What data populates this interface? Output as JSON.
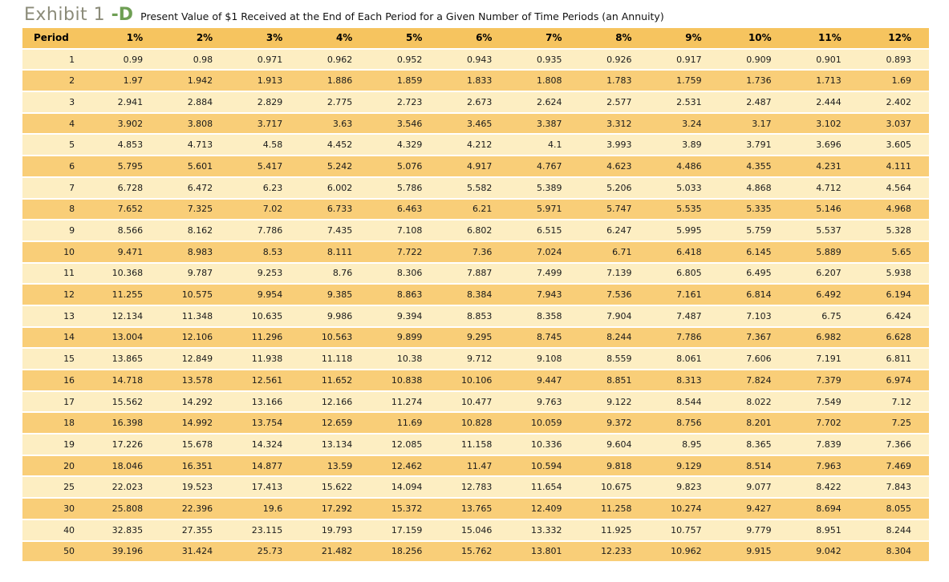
{
  "header": {
    "exhibit_label": "Exhibit 1 ",
    "exhibit_suffix": "-D",
    "subtitle": "Present Value of $1 Received at the End of Each Period for a Given Number of Time Periods (an Annuity)"
  },
  "colors": {
    "header_bg": "#f6c45f",
    "row_light": "#fdeec2",
    "row_dark": "#f9ce78",
    "exhibit_text": "#8b8b79",
    "exhibit_suffix_text": "#6e9f54"
  },
  "chart_data": {
    "type": "table",
    "title": "Present Value of $1 Received at the End of Each Period for a Given Number of Time Periods (an Annuity)",
    "columns": [
      "Period",
      "1%",
      "2%",
      "3%",
      "4%",
      "5%",
      "6%",
      "7%",
      "8%",
      "9%",
      "10%",
      "11%",
      "12%"
    ],
    "rows": [
      [
        "1",
        "0.99",
        "0.98",
        "0.971",
        "0.962",
        "0.952",
        "0.943",
        "0.935",
        "0.926",
        "0.917",
        "0.909",
        "0.901",
        "0.893"
      ],
      [
        "2",
        "1.97",
        "1.942",
        "1.913",
        "1.886",
        "1.859",
        "1.833",
        "1.808",
        "1.783",
        "1.759",
        "1.736",
        "1.713",
        "1.69"
      ],
      [
        "3",
        "2.941",
        "2.884",
        "2.829",
        "2.775",
        "2.723",
        "2.673",
        "2.624",
        "2.577",
        "2.531",
        "2.487",
        "2.444",
        "2.402"
      ],
      [
        "4",
        "3.902",
        "3.808",
        "3.717",
        "3.63",
        "3.546",
        "3.465",
        "3.387",
        "3.312",
        "3.24",
        "3.17",
        "3.102",
        "3.037"
      ],
      [
        "5",
        "4.853",
        "4.713",
        "4.58",
        "4.452",
        "4.329",
        "4.212",
        "4.1",
        "3.993",
        "3.89",
        "3.791",
        "3.696",
        "3.605"
      ],
      [
        "6",
        "5.795",
        "5.601",
        "5.417",
        "5.242",
        "5.076",
        "4.917",
        "4.767",
        "4.623",
        "4.486",
        "4.355",
        "4.231",
        "4.111"
      ],
      [
        "7",
        "6.728",
        "6.472",
        "6.23",
        "6.002",
        "5.786",
        "5.582",
        "5.389",
        "5.206",
        "5.033",
        "4.868",
        "4.712",
        "4.564"
      ],
      [
        "8",
        "7.652",
        "7.325",
        "7.02",
        "6.733",
        "6.463",
        "6.21",
        "5.971",
        "5.747",
        "5.535",
        "5.335",
        "5.146",
        "4.968"
      ],
      [
        "9",
        "8.566",
        "8.162",
        "7.786",
        "7.435",
        "7.108",
        "6.802",
        "6.515",
        "6.247",
        "5.995",
        "5.759",
        "5.537",
        "5.328"
      ],
      [
        "10",
        "9.471",
        "8.983",
        "8.53",
        "8.111",
        "7.722",
        "7.36",
        "7.024",
        "6.71",
        "6.418",
        "6.145",
        "5.889",
        "5.65"
      ],
      [
        "11",
        "10.368",
        "9.787",
        "9.253",
        "8.76",
        "8.306",
        "7.887",
        "7.499",
        "7.139",
        "6.805",
        "6.495",
        "6.207",
        "5.938"
      ],
      [
        "12",
        "11.255",
        "10.575",
        "9.954",
        "9.385",
        "8.863",
        "8.384",
        "7.943",
        "7.536",
        "7.161",
        "6.814",
        "6.492",
        "6.194"
      ],
      [
        "13",
        "12.134",
        "11.348",
        "10.635",
        "9.986",
        "9.394",
        "8.853",
        "8.358",
        "7.904",
        "7.487",
        "7.103",
        "6.75",
        "6.424"
      ],
      [
        "14",
        "13.004",
        "12.106",
        "11.296",
        "10.563",
        "9.899",
        "9.295",
        "8.745",
        "8.244",
        "7.786",
        "7.367",
        "6.982",
        "6.628"
      ],
      [
        "15",
        "13.865",
        "12.849",
        "11.938",
        "11.118",
        "10.38",
        "9.712",
        "9.108",
        "8.559",
        "8.061",
        "7.606",
        "7.191",
        "6.811"
      ],
      [
        "16",
        "14.718",
        "13.578",
        "12.561",
        "11.652",
        "10.838",
        "10.106",
        "9.447",
        "8.851",
        "8.313",
        "7.824",
        "7.379",
        "6.974"
      ],
      [
        "17",
        "15.562",
        "14.292",
        "13.166",
        "12.166",
        "11.274",
        "10.477",
        "9.763",
        "9.122",
        "8.544",
        "8.022",
        "7.549",
        "7.12"
      ],
      [
        "18",
        "16.398",
        "14.992",
        "13.754",
        "12.659",
        "11.69",
        "10.828",
        "10.059",
        "9.372",
        "8.756",
        "8.201",
        "7.702",
        "7.25"
      ],
      [
        "19",
        "17.226",
        "15.678",
        "14.324",
        "13.134",
        "12.085",
        "11.158",
        "10.336",
        "9.604",
        "8.95",
        "8.365",
        "7.839",
        "7.366"
      ],
      [
        "20",
        "18.046",
        "16.351",
        "14.877",
        "13.59",
        "12.462",
        "11.47",
        "10.594",
        "9.818",
        "9.129",
        "8.514",
        "7.963",
        "7.469"
      ],
      [
        "25",
        "22.023",
        "19.523",
        "17.413",
        "15.622",
        "14.094",
        "12.783",
        "11.654",
        "10.675",
        "9.823",
        "9.077",
        "8.422",
        "7.843"
      ],
      [
        "30",
        "25.808",
        "22.396",
        "19.6",
        "17.292",
        "15.372",
        "13.765",
        "12.409",
        "11.258",
        "10.274",
        "9.427",
        "8.694",
        "8.055"
      ],
      [
        "40",
        "32.835",
        "27.355",
        "23.115",
        "19.793",
        "17.159",
        "15.046",
        "13.332",
        "11.925",
        "10.757",
        "9.779",
        "8.951",
        "8.244"
      ],
      [
        "50",
        "39.196",
        "31.424",
        "25.73",
        "21.482",
        "18.256",
        "15.762",
        "13.801",
        "12.233",
        "10.962",
        "9.915",
        "9.042",
        "8.304"
      ]
    ]
  }
}
